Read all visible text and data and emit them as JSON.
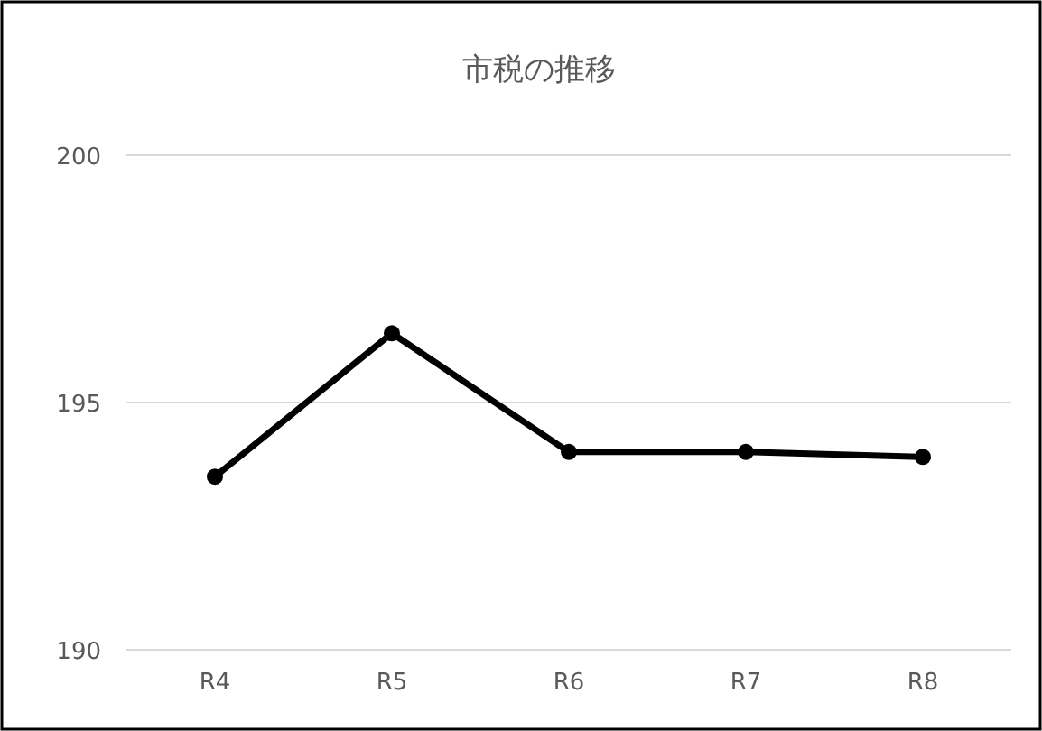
{
  "chart_data": {
    "type": "line",
    "title": "市税の推移",
    "categories": [
      "R4",
      "R5",
      "R6",
      "R7",
      "R8"
    ],
    "series": [
      {
        "color": "#000000",
        "values": [
          193.5,
          196.4,
          194.0,
          194.0,
          193.9
        ]
      }
    ],
    "ylim": [
      190,
      200
    ],
    "yticks": [
      190,
      195,
      200
    ],
    "grid": "y",
    "marker": "circle",
    "line_style": "solid"
  }
}
